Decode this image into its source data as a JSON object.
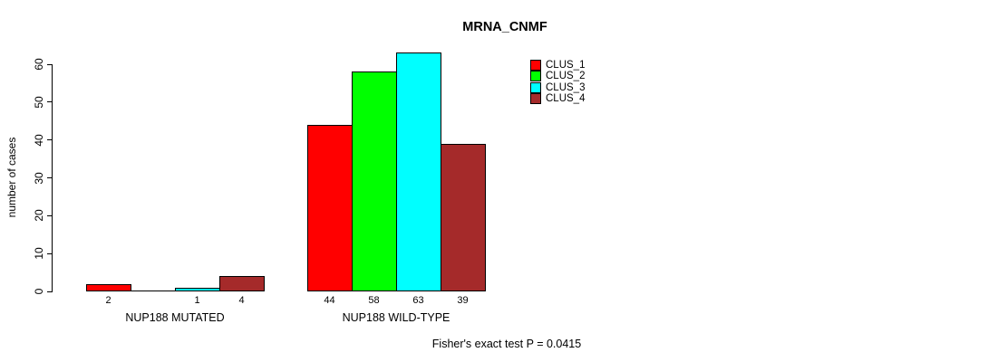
{
  "title": "MRNA_CNMF",
  "footer_note": "Fisher's exact test P = 0.0415",
  "chart_data": {
    "type": "bar",
    "title": "MRNA_CNMF",
    "xlabel": "",
    "ylabel": "number of cases",
    "groups": [
      "NUP188 MUTATED",
      "NUP188 WILD-TYPE"
    ],
    "series": [
      {
        "name": "CLUS_1",
        "color": "#ff0000",
        "values": [
          2,
          44
        ]
      },
      {
        "name": "CLUS_2",
        "color": "#00ff00",
        "values": [
          0,
          58
        ]
      },
      {
        "name": "CLUS_3",
        "color": "#00ffff",
        "values": [
          1,
          63
        ]
      },
      {
        "name": "CLUS_4",
        "color": "#a52a2a",
        "values": [
          4,
          39
        ]
      }
    ],
    "bar_value_labels": [
      [
        "2",
        "",
        "1",
        "4"
      ],
      [
        "44",
        "58",
        "63",
        "39"
      ]
    ],
    "yticks": [
      0,
      10,
      20,
      30,
      40,
      50,
      60
    ],
    "ylim": [
      0,
      63
    ],
    "grid": false,
    "legend_position": "top-right",
    "legend_items": [
      {
        "label": "CLUS_1",
        "color": "#ff0000"
      },
      {
        "label": "CLUS_2",
        "color": "#00ff00"
      },
      {
        "label": "CLUS_3",
        "color": "#00ffff"
      },
      {
        "label": "CLUS_4",
        "color": "#a52a2a"
      }
    ],
    "annotation": "Fisher's exact test P = 0.0415"
  }
}
